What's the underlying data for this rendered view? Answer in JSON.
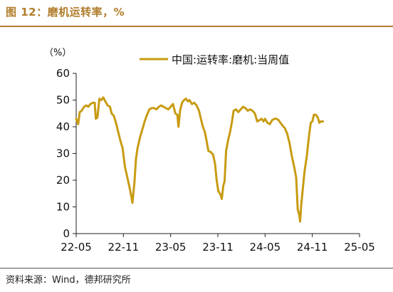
{
  "figure": {
    "title": "图 12：磨机运转率，%",
    "source": "资料来源：Wind，德邦研究所"
  },
  "colors": {
    "accent": "#b07d2b",
    "series": "#c89b12"
  },
  "chart_data": {
    "type": "line",
    "unit_label": "（%）",
    "ylim": [
      0,
      60
    ],
    "yticks": [
      0,
      10,
      20,
      30,
      40,
      50,
      60
    ],
    "xlim": [
      0,
      36
    ],
    "xticks": [
      {
        "pos": 0,
        "label": "22-05"
      },
      {
        "pos": 6,
        "label": "22-11"
      },
      {
        "pos": 12,
        "label": "23-05"
      },
      {
        "pos": 18,
        "label": "23-11"
      },
      {
        "pos": 24,
        "label": "24-05"
      },
      {
        "pos": 30,
        "label": "24-11"
      },
      {
        "pos": 36,
        "label": "25-05"
      }
    ],
    "grid": false,
    "legend_position": "top",
    "series": [
      {
        "name": "中国:运转率:磨机:当周值",
        "points": [
          [
            0.0,
            43
          ],
          [
            0.25,
            41
          ],
          [
            0.45,
            45.5
          ],
          [
            0.7,
            46
          ],
          [
            1.0,
            47.5
          ],
          [
            1.3,
            48
          ],
          [
            1.55,
            47.5
          ],
          [
            1.8,
            48.5
          ],
          [
            2.1,
            49
          ],
          [
            2.35,
            49
          ],
          [
            2.5,
            43
          ],
          [
            2.7,
            43.5
          ],
          [
            2.95,
            50.5
          ],
          [
            3.2,
            50
          ],
          [
            3.45,
            51
          ],
          [
            3.7,
            49.5
          ],
          [
            4.0,
            48
          ],
          [
            4.3,
            47.5
          ],
          [
            4.5,
            45
          ],
          [
            4.8,
            44
          ],
          [
            5.1,
            41
          ],
          [
            5.35,
            38
          ],
          [
            5.6,
            35
          ],
          [
            5.9,
            32
          ],
          [
            6.2,
            25
          ],
          [
            6.5,
            21
          ],
          [
            6.8,
            17
          ],
          [
            7.0,
            14
          ],
          [
            7.15,
            11.5
          ],
          [
            7.4,
            19
          ],
          [
            7.6,
            28
          ],
          [
            7.8,
            32
          ],
          [
            8.1,
            36
          ],
          [
            8.4,
            39
          ],
          [
            8.7,
            42
          ],
          [
            9.0,
            44.5
          ],
          [
            9.3,
            46.5
          ],
          [
            9.6,
            47
          ],
          [
            9.9,
            47
          ],
          [
            10.2,
            46.5
          ],
          [
            10.5,
            47.5
          ],
          [
            10.8,
            48
          ],
          [
            11.1,
            47.5
          ],
          [
            11.4,
            47
          ],
          [
            11.7,
            46.5
          ],
          [
            12.0,
            47.5
          ],
          [
            12.3,
            48.5
          ],
          [
            12.6,
            45
          ],
          [
            12.85,
            44.5
          ],
          [
            13.0,
            40
          ],
          [
            13.2,
            46
          ],
          [
            13.45,
            49
          ],
          [
            13.7,
            50
          ],
          [
            13.95,
            50.5
          ],
          [
            14.2,
            49.5
          ],
          [
            14.4,
            50
          ],
          [
            14.7,
            48.5
          ],
          [
            15.0,
            49
          ],
          [
            15.3,
            48
          ],
          [
            15.6,
            46
          ],
          [
            15.85,
            43
          ],
          [
            16.1,
            40
          ],
          [
            16.35,
            38
          ],
          [
            16.55,
            35
          ],
          [
            16.8,
            31
          ],
          [
            17.1,
            30.5
          ],
          [
            17.4,
            29.5
          ],
          [
            17.65,
            26
          ],
          [
            17.85,
            20
          ],
          [
            18.05,
            16
          ],
          [
            18.35,
            14.5
          ],
          [
            18.5,
            13
          ],
          [
            18.7,
            18
          ],
          [
            18.85,
            19.5
          ],
          [
            19.05,
            31
          ],
          [
            19.3,
            35
          ],
          [
            19.55,
            38
          ],
          [
            19.8,
            42
          ],
          [
            20.0,
            46
          ],
          [
            20.3,
            46.5
          ],
          [
            20.6,
            45.5
          ],
          [
            20.9,
            46.5
          ],
          [
            21.2,
            47.5
          ],
          [
            21.5,
            47
          ],
          [
            21.8,
            46
          ],
          [
            22.1,
            46.5
          ],
          [
            22.4,
            46
          ],
          [
            22.7,
            45
          ],
          [
            23.0,
            42
          ],
          [
            23.3,
            42.5
          ],
          [
            23.55,
            43
          ],
          [
            23.8,
            42
          ],
          [
            24.0,
            43
          ],
          [
            24.3,
            41.5
          ],
          [
            24.6,
            41
          ],
          [
            24.9,
            42.5
          ],
          [
            25.2,
            43
          ],
          [
            25.45,
            43
          ],
          [
            25.7,
            42.5
          ],
          [
            25.95,
            41.5
          ],
          [
            26.2,
            40.5
          ],
          [
            26.5,
            39.5
          ],
          [
            26.8,
            37.5
          ],
          [
            27.1,
            34
          ],
          [
            27.4,
            29
          ],
          [
            27.7,
            25
          ],
          [
            27.95,
            21
          ],
          [
            28.15,
            9
          ],
          [
            28.35,
            7
          ],
          [
            28.45,
            4.5
          ],
          [
            28.6,
            11
          ],
          [
            28.8,
            17
          ],
          [
            29.0,
            23
          ],
          [
            29.3,
            29
          ],
          [
            29.6,
            37
          ],
          [
            29.8,
            41.5
          ],
          [
            30.0,
            42
          ],
          [
            30.2,
            44.5
          ],
          [
            30.45,
            44.5
          ],
          [
            30.7,
            43.5
          ],
          [
            30.9,
            41.5
          ],
          [
            31.1,
            42
          ],
          [
            31.35,
            42
          ]
        ]
      }
    ]
  }
}
